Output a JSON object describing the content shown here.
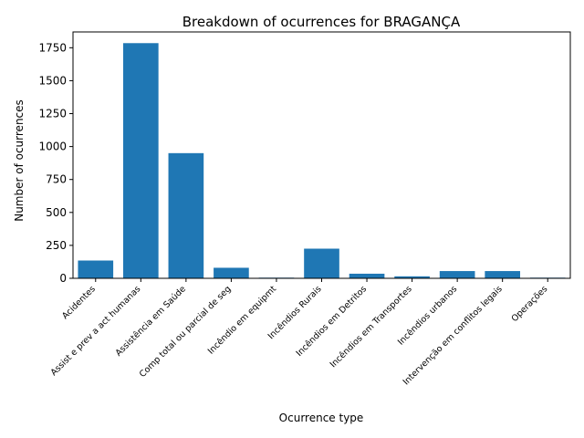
{
  "chart_data": {
    "type": "bar",
    "title": "Breakdown of ocurrences for BRAGANÇA",
    "xlabel": "Ocurrence type",
    "ylabel": "Number of ocurrences",
    "ylim": [
      0,
      1870
    ],
    "yticks": [
      0,
      250,
      500,
      750,
      1000,
      1250,
      1500,
      1750
    ],
    "categories": [
      "Acidentes",
      "Assist e prev a act humanas",
      "Assistência em Saúde",
      "Comp total ou parcial de seg",
      "Incêndio em equipmt",
      "Incêndios Rurais",
      "Incêndios em Detritos",
      "Incêndios em Transportes",
      "Incêndios urbanos",
      "Intervenção em conflitos legais",
      "Operações"
    ],
    "values": [
      135,
      1785,
      950,
      80,
      5,
      225,
      35,
      15,
      55,
      55,
      5
    ],
    "bar_color": "#1f77b4",
    "grid": false,
    "legend": "none"
  }
}
